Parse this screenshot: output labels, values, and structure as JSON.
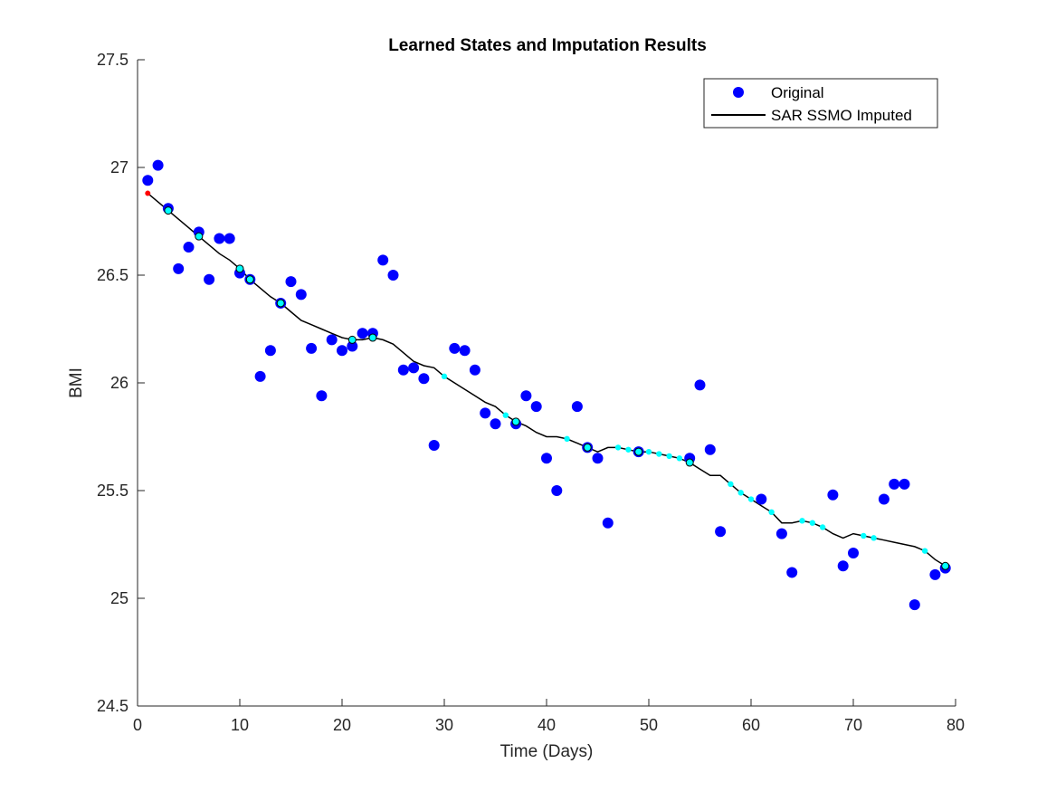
{
  "chart_data": {
    "type": "scatter",
    "title": "Learned States and Imputation Results",
    "xlabel": "Time (Days)",
    "ylabel": "BMI",
    "xlim": [
      0,
      80
    ],
    "ylim": [
      24.5,
      27.5
    ],
    "xticks": [
      0,
      10,
      20,
      30,
      40,
      50,
      60,
      70,
      80
    ],
    "yticks": [
      24.5,
      25,
      25.5,
      26,
      26.5,
      27,
      27.5
    ],
    "grid": false,
    "legend_position": "top-right",
    "legend": [
      {
        "label": "Original",
        "marker": "filled-circle",
        "color": "#0000FF"
      },
      {
        "label": "SAR SSMO Imputed",
        "marker": "line",
        "color": "#000000"
      }
    ],
    "colors": {
      "original": "#0000FF",
      "imputed_line": "#000000",
      "imputed_points": "#00FFFF",
      "initial_state": "#FF0000"
    },
    "series": [
      {
        "name": "Original",
        "style": "marker",
        "x": [
          1,
          2,
          3,
          4,
          5,
          6,
          7,
          8,
          9,
          10,
          11,
          12,
          13,
          14,
          15,
          16,
          17,
          18,
          19,
          20,
          21,
          22,
          23,
          24,
          25,
          26,
          27,
          28,
          29,
          31,
          32,
          33,
          34,
          35,
          37,
          38,
          39,
          40,
          41,
          43,
          44,
          45,
          46,
          49,
          54,
          55,
          56,
          57,
          61,
          63,
          64,
          68,
          69,
          70,
          73,
          74,
          75,
          76,
          78,
          79
        ],
        "y": [
          26.94,
          27.01,
          26.81,
          26.53,
          26.63,
          26.7,
          26.48,
          26.67,
          26.67,
          26.51,
          26.48,
          26.03,
          26.15,
          26.37,
          26.47,
          26.41,
          26.16,
          25.94,
          26.2,
          26.15,
          26.17,
          26.23,
          26.23,
          26.57,
          26.5,
          26.06,
          26.07,
          26.02,
          25.71,
          26.16,
          26.15,
          26.06,
          25.86,
          25.81,
          25.81,
          25.94,
          25.89,
          25.65,
          25.5,
          25.89,
          25.7,
          25.65,
          25.35,
          25.68,
          25.65,
          25.99,
          25.69,
          25.31,
          25.46,
          25.3,
          25.12,
          25.48,
          25.15,
          25.21,
          25.46,
          25.53,
          25.53,
          24.97,
          25.11,
          25.14
        ]
      },
      {
        "name": "SAR SSMO Imputed",
        "style": "line",
        "x": [
          1,
          2,
          3,
          4,
          5,
          6,
          7,
          8,
          9,
          10,
          11,
          12,
          13,
          14,
          15,
          16,
          17,
          18,
          19,
          20,
          21,
          22,
          23,
          24,
          25,
          26,
          27,
          28,
          29,
          30,
          31,
          32,
          33,
          34,
          35,
          36,
          37,
          38,
          39,
          40,
          41,
          42,
          43,
          44,
          45,
          46,
          47,
          48,
          49,
          50,
          51,
          52,
          53,
          54,
          55,
          56,
          57,
          58,
          59,
          60,
          61,
          62,
          63,
          64,
          65,
          66,
          67,
          68,
          69,
          70,
          71,
          72,
          73,
          74,
          75,
          76,
          77,
          78,
          79
        ],
        "y": [
          26.88,
          26.84,
          26.8,
          26.76,
          26.72,
          26.68,
          26.64,
          26.6,
          26.57,
          26.53,
          26.48,
          26.44,
          26.4,
          26.37,
          26.33,
          26.29,
          26.27,
          26.25,
          26.23,
          26.21,
          26.2,
          26.2,
          26.21,
          26.2,
          26.18,
          26.14,
          26.1,
          26.08,
          26.07,
          26.03,
          26.0,
          25.97,
          25.94,
          25.91,
          25.89,
          25.85,
          25.82,
          25.8,
          25.77,
          25.75,
          25.75,
          25.74,
          25.72,
          25.7,
          25.68,
          25.7,
          25.7,
          25.69,
          25.68,
          25.68,
          25.67,
          25.66,
          25.65,
          25.63,
          25.6,
          25.57,
          25.57,
          25.53,
          25.49,
          25.46,
          25.43,
          25.4,
          25.35,
          25.35,
          25.36,
          25.35,
          25.33,
          25.3,
          25.28,
          25.3,
          25.29,
          25.28,
          25.27,
          25.26,
          25.25,
          25.24,
          25.22,
          25.18,
          25.15
        ]
      }
    ],
    "initial_state": {
      "x": 1,
      "y": 26.88
    }
  }
}
